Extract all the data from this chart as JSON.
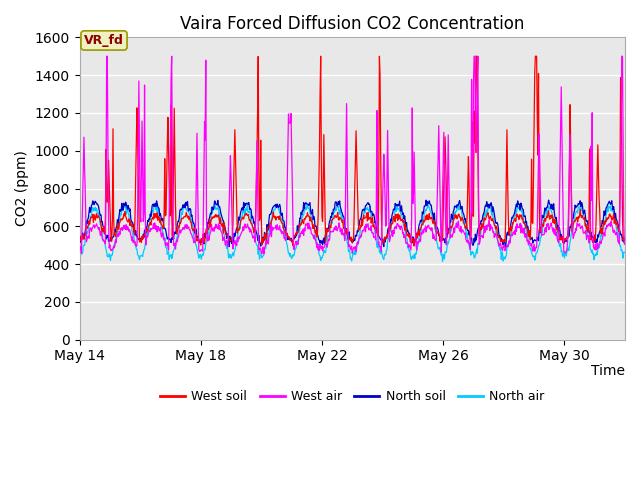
{
  "title": "Vaira Forced Diffusion CO2 Concentration",
  "xlabel": "Time",
  "ylabel": "CO2 (ppm)",
  "ylim": [
    0,
    1600
  ],
  "yticks": [
    0,
    200,
    400,
    600,
    800,
    1000,
    1200,
    1400,
    1600
  ],
  "x_start_day": 14,
  "n_days": 18,
  "xtick_days": [
    14,
    18,
    22,
    26,
    30
  ],
  "xtick_labels": [
    "May 14",
    "May 18",
    "May 22",
    "May 26",
    "May 30"
  ],
  "legend_labels": [
    "West soil",
    "West air",
    "North soil",
    "North air"
  ],
  "legend_colors": [
    "#ff0000",
    "#ff00ff",
    "#0000cc",
    "#00ccff"
  ],
  "annotation_text": "VR_fd",
  "annotation_color": "#8b0000",
  "background_color": "#e8e8e8",
  "figure_bg": "#ffffff",
  "seed": 42
}
